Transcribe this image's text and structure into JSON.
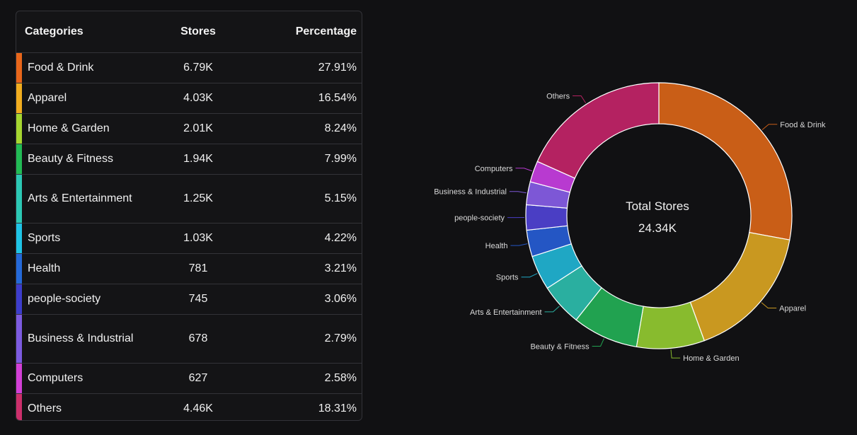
{
  "table": {
    "headers": {
      "category": "Categories",
      "stores": "Stores",
      "percentage": "Percentage"
    }
  },
  "colors": {
    "table_swatches": [
      "#e8661a",
      "#f1ad1f",
      "#a6d630",
      "#22bb55",
      "#2cc8b4",
      "#1fc4e6",
      "#2469d9",
      "#3d3dcc",
      "#7c5be0",
      "#d23fd6",
      "#cc2f6b"
    ],
    "slices": [
      "#c95e17",
      "#c99820",
      "#88bb2e",
      "#21a250",
      "#2aafa0",
      "#1fa7c4",
      "#2456c4",
      "#4a3ec4",
      "#7d57d6",
      "#b83ad0",
      "#b42261"
    ]
  },
  "chart_data": {
    "type": "pie",
    "center_title": "Total Stores",
    "center_value": "24.34K",
    "rows": [
      {
        "category": "Food & Drink",
        "label": "Food & Drink",
        "stores": "6.79K",
        "percentage": "27.91%",
        "value": 27.91
      },
      {
        "category": "Apparel",
        "label": "Apparel",
        "stores": "4.03K",
        "percentage": "16.54%",
        "value": 16.54
      },
      {
        "category": "Home & Garden",
        "label": "Home & Garden",
        "stores": "2.01K",
        "percentage": "8.24%",
        "value": 8.24
      },
      {
        "category": "Beauty & Fitness",
        "label": "Beauty & Fitness",
        "stores": "1.94K",
        "percentage": "7.99%",
        "value": 7.99
      },
      {
        "category": "Arts & Entertainment",
        "label": "Arts & Entertainment",
        "stores": "1.25K",
        "percentage": "5.15%",
        "value": 5.15
      },
      {
        "category": "Sports",
        "label": "Sports",
        "stores": "1.03K",
        "percentage": "4.22%",
        "value": 4.22
      },
      {
        "category": "Health",
        "label": "Health",
        "stores": "781",
        "percentage": "3.21%",
        "value": 3.21
      },
      {
        "category": "people-society",
        "label": "people-society",
        "stores": "745",
        "percentage": "3.06%",
        "value": 3.06
      },
      {
        "category": "Business & Industrial",
        "label": "Business & Industrial",
        "stores": "678",
        "percentage": "2.79%",
        "value": 2.79
      },
      {
        "category": "Computers",
        "label": "Computers",
        "stores": "627",
        "percentage": "2.58%",
        "value": 2.58
      },
      {
        "category": "Others",
        "label": "Others",
        "stores": "4.46K",
        "percentage": "18.31%",
        "value": 18.31
      }
    ]
  }
}
